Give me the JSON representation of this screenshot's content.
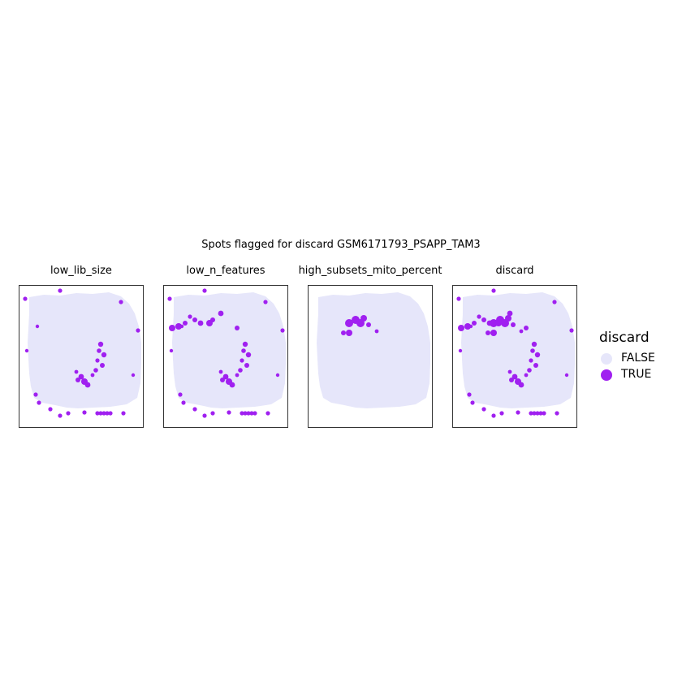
{
  "chart_data": {
    "type": "scatter",
    "title": "Spots flagged for discard GSM6171793_PSAPP_TAM3",
    "facets": [
      "low_lib_size",
      "low_n_features",
      "high_subsets_mito_percent",
      "discard"
    ],
    "legend": {
      "title": "discard",
      "position": "right",
      "entries": [
        {
          "label": "FALSE",
          "color": "#e6e6fa"
        },
        {
          "label": "TRUE",
          "color": "#a020f0"
        }
      ]
    },
    "grid": false,
    "axes_visible": false,
    "flagged_regions": {
      "low_lib_size": [
        "edge",
        "center-streak",
        "center-lower-cluster"
      ],
      "low_n_features": [
        "edge",
        "upper-left",
        "center-streak",
        "center-lower-cluster"
      ],
      "high_subsets_mito_percent": [
        "upper-center"
      ],
      "discard": [
        "edge",
        "upper-left",
        "upper-center",
        "center-streak",
        "center-lower-cluster"
      ]
    }
  }
}
